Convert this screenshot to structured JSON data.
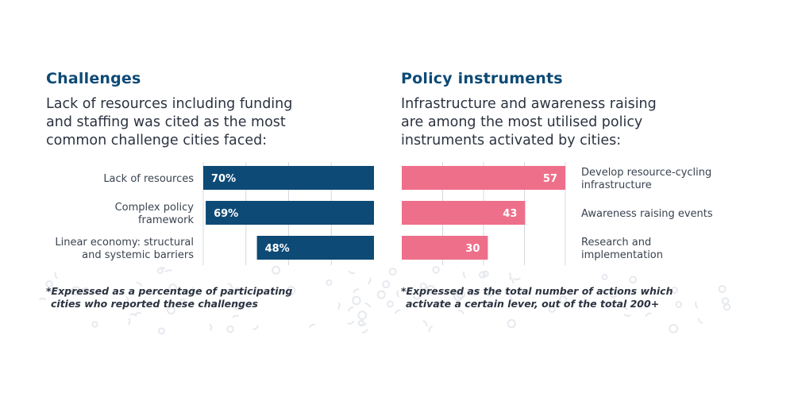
{
  "left": {
    "heading": "Challenges",
    "subtitle_lines": [
      "Lack of resources including funding",
      "and staffing was cited as the most",
      "common challenge cities faced:"
    ],
    "footnote_lines": [
      "*Expressed as a percentage of participating",
      "cities who reported these challenges"
    ]
  },
  "right": {
    "heading": "Policy instruments",
    "subtitle_lines": [
      "Infrastructure and awareness raising",
      "are among the most utilised policy",
      "instruments activated by cities:"
    ],
    "footnote_lines": [
      "*Expressed as the total number of actions which",
      "activate a certain lever, out of the total 200+"
    ]
  },
  "chart_data": [
    {
      "type": "bar",
      "orientation": "horizontal",
      "categories": [
        [
          "Lack of resources"
        ],
        [
          "Complex policy",
          "framework"
        ],
        [
          "Linear economy: structural",
          "and systemic barriers"
        ]
      ],
      "values": [
        70,
        69,
        48
      ],
      "value_labels": [
        "70%",
        "69%",
        "48%"
      ],
      "xlim": [
        0,
        70
      ],
      "grid": true,
      "bar_color": "#0d4a76",
      "label_color": "#ffffff",
      "direction": "right-aligned"
    },
    {
      "type": "bar",
      "orientation": "horizontal",
      "categories": [
        [
          "Develop resource-cycling",
          "infrastructure"
        ],
        [
          "Awareness raising events"
        ],
        [
          "Research and",
          "implementation"
        ]
      ],
      "values": [
        57,
        43,
        30
      ],
      "value_labels": [
        "57",
        "43",
        "30"
      ],
      "xlim": [
        0,
        57
      ],
      "grid": true,
      "bar_color": "#ee6f8a",
      "label_color": "#ffffff",
      "direction": "left-aligned"
    }
  ]
}
